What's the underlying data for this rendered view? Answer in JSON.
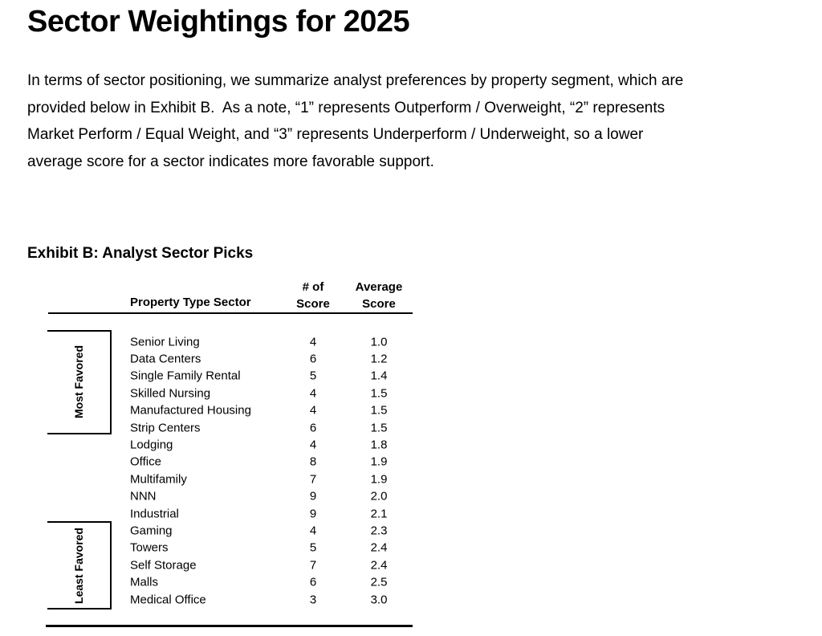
{
  "colors": {
    "text": "#000000",
    "background": "#ffffff",
    "rule": "#000000"
  },
  "header": {
    "title": "Sector Weightings for 2025"
  },
  "intro": {
    "lines": [
      "In terms of sector positioning, we summarize analyst preferences by property segment, which are",
      "provided below in Exhibit B.  As a note, “1” represents Outperform / Overweight, “2” represents",
      "Market Perform / Equal Weight, and “3” represents Underperform / Underweight, so a lower",
      "average score for a sector indicates more favorable support."
    ]
  },
  "exhibit": {
    "title": "Exhibit B: Analyst Sector Picks",
    "table": {
      "headers": {
        "sector": "Property Type Sector",
        "count_line1": "# of",
        "count_line2": "Score",
        "avg_line1": "Average",
        "avg_line2": "Score"
      },
      "rows": [
        {
          "sector": "Senior Living",
          "count": "4",
          "avg": "1.0"
        },
        {
          "sector": "Data Centers",
          "count": "6",
          "avg": "1.2"
        },
        {
          "sector": "Single Family Rental",
          "count": "5",
          "avg": "1.4"
        },
        {
          "sector": "Skilled Nursing",
          "count": "4",
          "avg": "1.5"
        },
        {
          "sector": "Manufactured Housing",
          "count": "4",
          "avg": "1.5"
        },
        {
          "sector": "Strip Centers",
          "count": "6",
          "avg": "1.5"
        },
        {
          "sector": "Lodging",
          "count": "4",
          "avg": "1.8"
        },
        {
          "sector": "Office",
          "count": "8",
          "avg": "1.9"
        },
        {
          "sector": "Multifamily",
          "count": "7",
          "avg": "1.9"
        },
        {
          "sector": "NNN",
          "count": "9",
          "avg": "2.0"
        },
        {
          "sector": "Industrial",
          "count": "9",
          "avg": "2.1"
        },
        {
          "sector": "Gaming",
          "count": "4",
          "avg": "2.3"
        },
        {
          "sector": "Towers",
          "count": "5",
          "avg": "2.4"
        },
        {
          "sector": "Self Storage",
          "count": "7",
          "avg": "2.4"
        },
        {
          "sector": "Malls",
          "count": "6",
          "avg": "2.5"
        },
        {
          "sector": "Medical Office",
          "count": "3",
          "avg": "3.0"
        }
      ],
      "brackets": [
        {
          "label": "Most Favored",
          "first_row": 1,
          "last_row": 6
        },
        {
          "label": "Least Favored",
          "first_row": 12,
          "last_row": 16
        }
      ]
    }
  }
}
